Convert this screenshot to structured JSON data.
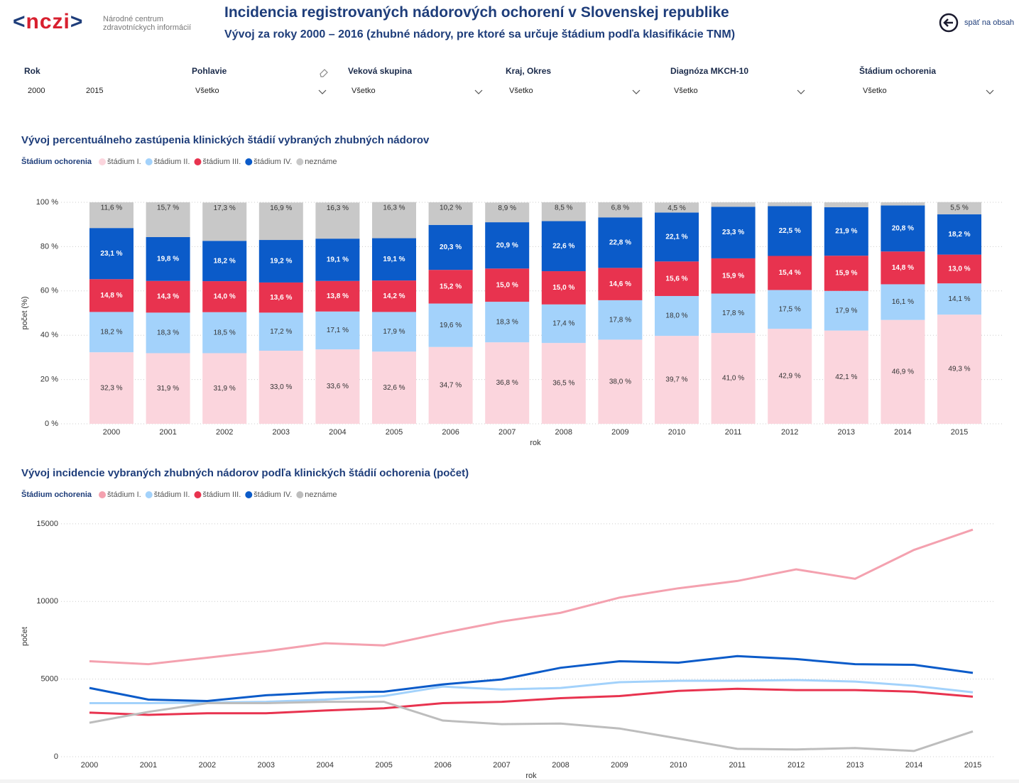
{
  "header": {
    "logo": "nczi",
    "org_line1": "Národné centrum",
    "org_line2": "zdravotníckych informácií",
    "title": "Incidencia registrovaných nádorových ochorení v Slovenskej republike",
    "subtitle": "Vývoj za roky 2000 – 2016 (zhubné nádory, pre ktoré sa určuje štádium podľa klasifikácie TNM)",
    "back": "späť na obsah"
  },
  "filters": [
    {
      "label": "Rok",
      "values": [
        "2000",
        "2015"
      ]
    },
    {
      "label": "Pohlavie",
      "values": [
        "Všetko"
      ]
    },
    {
      "label": "Veková skupina",
      "values": [
        "Všetko"
      ]
    },
    {
      "label": "Kraj, Okres",
      "values": [
        "Všetko"
      ]
    },
    {
      "label": "Diagnóza MKCH-10",
      "values": [
        "Všetko"
      ]
    },
    {
      "label": "Štádium ochorenia",
      "values": [
        "Všetko"
      ]
    }
  ],
  "chart_data": [
    {
      "type": "stacked_bar",
      "title": "Vývoj percentuálneho zastúpenia klinických štádií vybraných zhubných nádorov",
      "legend_title": "Štádium ochorenia",
      "xlabel": "rok",
      "ylabel": "počet (%)",
      "categories": [
        "2000",
        "2001",
        "2002",
        "2003",
        "2004",
        "2005",
        "2006",
        "2007",
        "2008",
        "2009",
        "2010",
        "2011",
        "2012",
        "2013",
        "2014",
        "2015"
      ],
      "ylim": [
        0,
        100
      ],
      "yticks": [
        {
          "value": 0,
          "label": "0 %"
        },
        {
          "value": 20,
          "label": "20 %"
        },
        {
          "value": 40,
          "label": "40 %"
        },
        {
          "value": 60,
          "label": "60 %"
        },
        {
          "value": 80,
          "label": "80 %"
        },
        {
          "value": 100,
          "label": "100 %"
        }
      ],
      "grid": true,
      "series": [
        {
          "name": "štádium I.",
          "color": "#fbd5dd",
          "label_color": "#333333",
          "values": [
            32.3,
            31.9,
            31.9,
            33.0,
            33.6,
            32.6,
            34.7,
            36.8,
            36.5,
            38.0,
            39.7,
            41.0,
            42.9,
            42.1,
            46.9,
            49.3
          ],
          "value_labels": [
            "32,3 %",
            "31,9 %",
            "31,9 %",
            "33,0 %",
            "33,6 %",
            "32,6 %",
            "34,7 %",
            "36,8 %",
            "36,5 %",
            "38,0 %",
            "39,7 %",
            "41,0 %",
            "42,9 %",
            "42,1 %",
            "46,9 %",
            "49,3 %"
          ]
        },
        {
          "name": "štádium II.",
          "color": "#a3d2fb",
          "label_color": "#333333",
          "values": [
            18.2,
            18.3,
            18.5,
            17.2,
            17.1,
            17.9,
            19.6,
            18.3,
            17.4,
            17.8,
            18.0,
            17.8,
            17.5,
            17.9,
            16.1,
            14.1
          ],
          "value_labels": [
            "18,2 %",
            "18,3 %",
            "18,5 %",
            "17,2 %",
            "17,1 %",
            "17,9 %",
            "19,6 %",
            "18,3 %",
            "17,4 %",
            "17,8 %",
            "18,0 %",
            "17,8 %",
            "17,5 %",
            "17,9 %",
            "16,1 %",
            "14,1 %"
          ]
        },
        {
          "name": "štádium III.",
          "color": "#e8334f",
          "label_color": "#ffffff",
          "values": [
            14.8,
            14.3,
            14.0,
            13.6,
            13.8,
            14.2,
            15.2,
            15.0,
            15.0,
            14.6,
            15.6,
            15.9,
            15.4,
            15.9,
            14.8,
            13.0
          ],
          "value_labels": [
            "14,8 %",
            "14,3 %",
            "14,0 %",
            "13,6 %",
            "13,8 %",
            "14,2 %",
            "15,2 %",
            "15,0 %",
            "15,0 %",
            "14,6 %",
            "15,6 %",
            "15,9 %",
            "15,4 %",
            "15,9 %",
            "14,8 %",
            "13,0 %"
          ]
        },
        {
          "name": "štádium IV.",
          "color": "#0b5bc9",
          "label_color": "#ffffff",
          "values": [
            23.1,
            19.8,
            18.2,
            19.2,
            19.1,
            19.1,
            20.3,
            20.9,
            22.6,
            22.8,
            22.1,
            23.3,
            22.5,
            21.9,
            20.8,
            18.2
          ],
          "value_labels": [
            "23,1 %",
            "19,8 %",
            "18,2 %",
            "19,2 %",
            "19,1 %",
            "19,1 %",
            "20,3 %",
            "20,9 %",
            "22,6 %",
            "22,8 %",
            "22,1 %",
            "23,3 %",
            "22,5 %",
            "21,9 %",
            "20,8 %",
            "18,2 %"
          ]
        },
        {
          "name": "neznáme",
          "color": "#c8c8c8",
          "label_color": "#333333",
          "values": [
            11.6,
            15.7,
            17.3,
            16.9,
            16.3,
            16.3,
            10.2,
            8.9,
            8.5,
            6.8,
            4.5,
            2.0,
            1.7,
            2.2,
            1.4,
            5.5
          ],
          "value_labels": [
            "11,6 %",
            "15,7 %",
            "17,3 %",
            "16,9 %",
            "16,3 %",
            "16,3 %",
            "10,2 %",
            "8,9 %",
            "8,5 %",
            "6,8 %",
            "4,5 %",
            null,
            null,
            null,
            null,
            "5,5 %"
          ]
        }
      ]
    },
    {
      "type": "line",
      "title": "Vývoj incidencie vybraných zhubných nádorov podľa klinických štádií ochorenia (počet)",
      "legend_title": "Štádium ochorenia",
      "xlabel": "rok",
      "ylabel": "počet",
      "categories": [
        "2000",
        "2001",
        "2002",
        "2003",
        "2004",
        "2005",
        "2006",
        "2007",
        "2008",
        "2009",
        "2010",
        "2011",
        "2012",
        "2013",
        "2014",
        "2015"
      ],
      "ylim": [
        0,
        15500
      ],
      "yticks": [
        0,
        5000,
        10000,
        15000
      ],
      "grid": true,
      "series": [
        {
          "name": "štádium I.",
          "color": "#f4a1af",
          "values": [
            6150,
            5960,
            6380,
            6800,
            7310,
            7170,
            7970,
            8710,
            9270,
            10250,
            10850,
            11320,
            12070,
            11460,
            13320,
            14630
          ]
        },
        {
          "name": "štádium II.",
          "color": "#a3d2fb",
          "values": [
            3450,
            3450,
            3490,
            3540,
            3680,
            3910,
            4520,
            4330,
            4430,
            4800,
            4890,
            4890,
            4940,
            4840,
            4570,
            4150
          ]
        },
        {
          "name": "štádium III.",
          "color": "#e8334f",
          "values": [
            2840,
            2700,
            2800,
            2800,
            2980,
            3120,
            3450,
            3540,
            3770,
            3910,
            4240,
            4380,
            4290,
            4290,
            4190,
            3870
          ]
        },
        {
          "name": "štádium IV.",
          "color": "#0b5bc9",
          "values": [
            4430,
            3680,
            3590,
            3960,
            4150,
            4190,
            4660,
            4980,
            5730,
            6150,
            6060,
            6480,
            6290,
            5960,
            5920,
            5400
          ]
        },
        {
          "name": "neznáme",
          "color": "#bdbdbd",
          "values": [
            2190,
            2890,
            3450,
            3450,
            3540,
            3540,
            2330,
            2100,
            2140,
            1820,
            1170,
            510,
            470,
            560,
            370,
            1630
          ]
        }
      ]
    }
  ]
}
